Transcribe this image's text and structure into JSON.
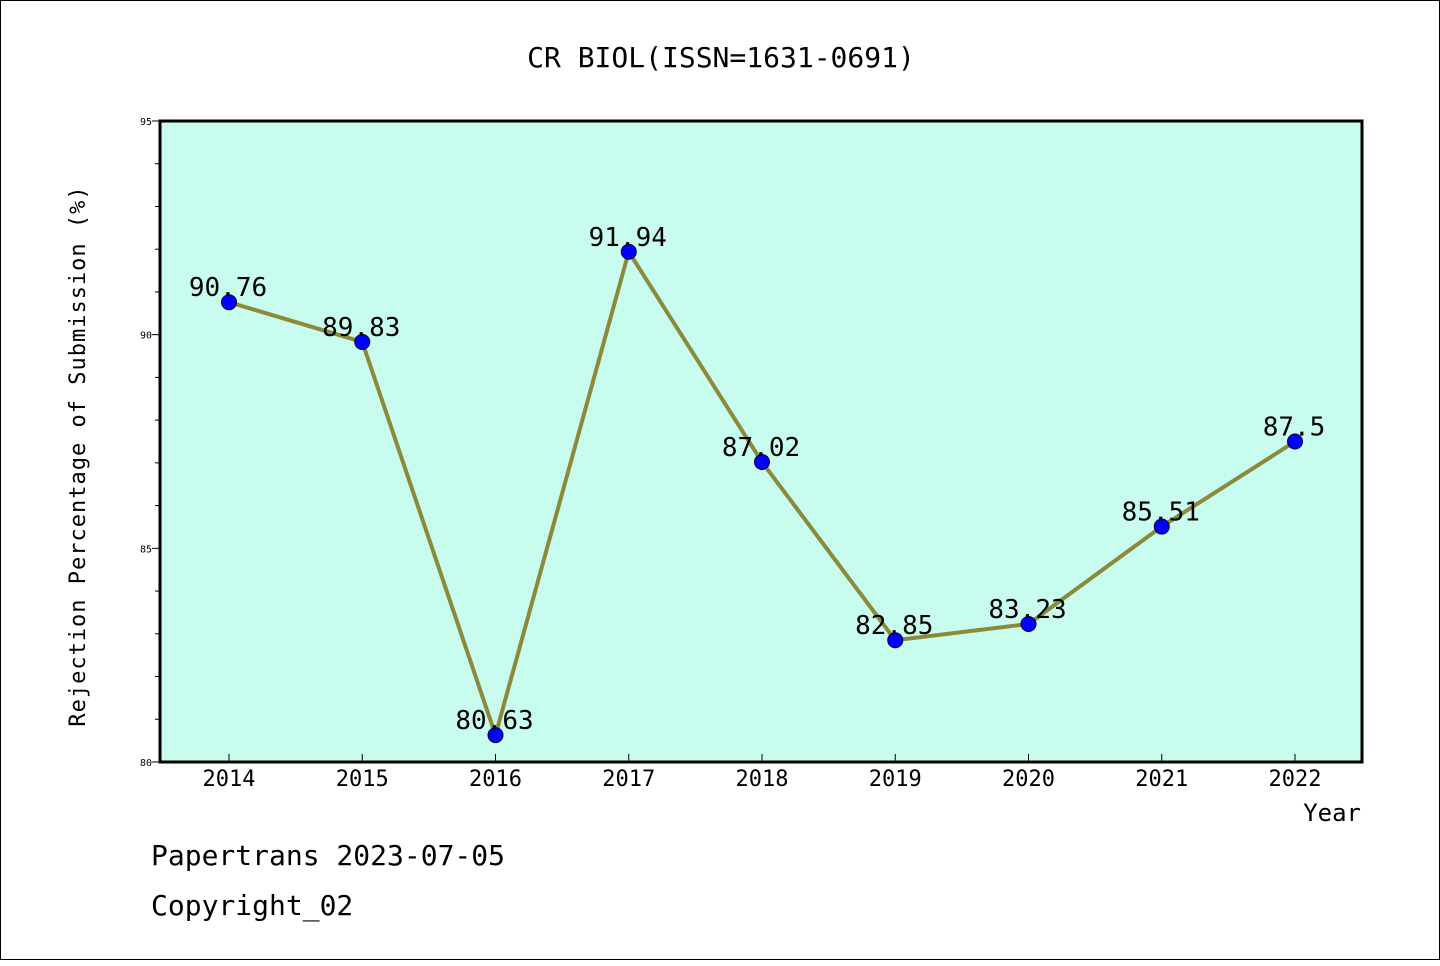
{
  "chart_data": {
    "type": "line",
    "title": "CR BIOL(ISSN=1631-0691)",
    "xlabel": "Year",
    "ylabel": "Rejection Percentage of Submission (%)",
    "categories": [
      "2014",
      "2015",
      "2016",
      "2017",
      "2018",
      "2019",
      "2020",
      "2021",
      "2022"
    ],
    "values": [
      90.76,
      89.83,
      80.63,
      91.94,
      87.02,
      82.85,
      83.23,
      85.51,
      87.5
    ],
    "data_labels": [
      "90.76",
      "89.83",
      "80.63",
      "91.94",
      "87.02",
      "82.85",
      "83.23",
      "85.51",
      "87.5"
    ],
    "ylim": [
      80,
      95
    ],
    "yticks": [
      "80",
      "85",
      "90",
      "95"
    ],
    "grid": false,
    "colors": {
      "plot_background": "#c8fcee",
      "line": "#8b8a3b",
      "marker": "#0000ff"
    }
  },
  "footer": {
    "line1": "Papertrans 2023-07-05",
    "line2": "Copyright_02"
  }
}
